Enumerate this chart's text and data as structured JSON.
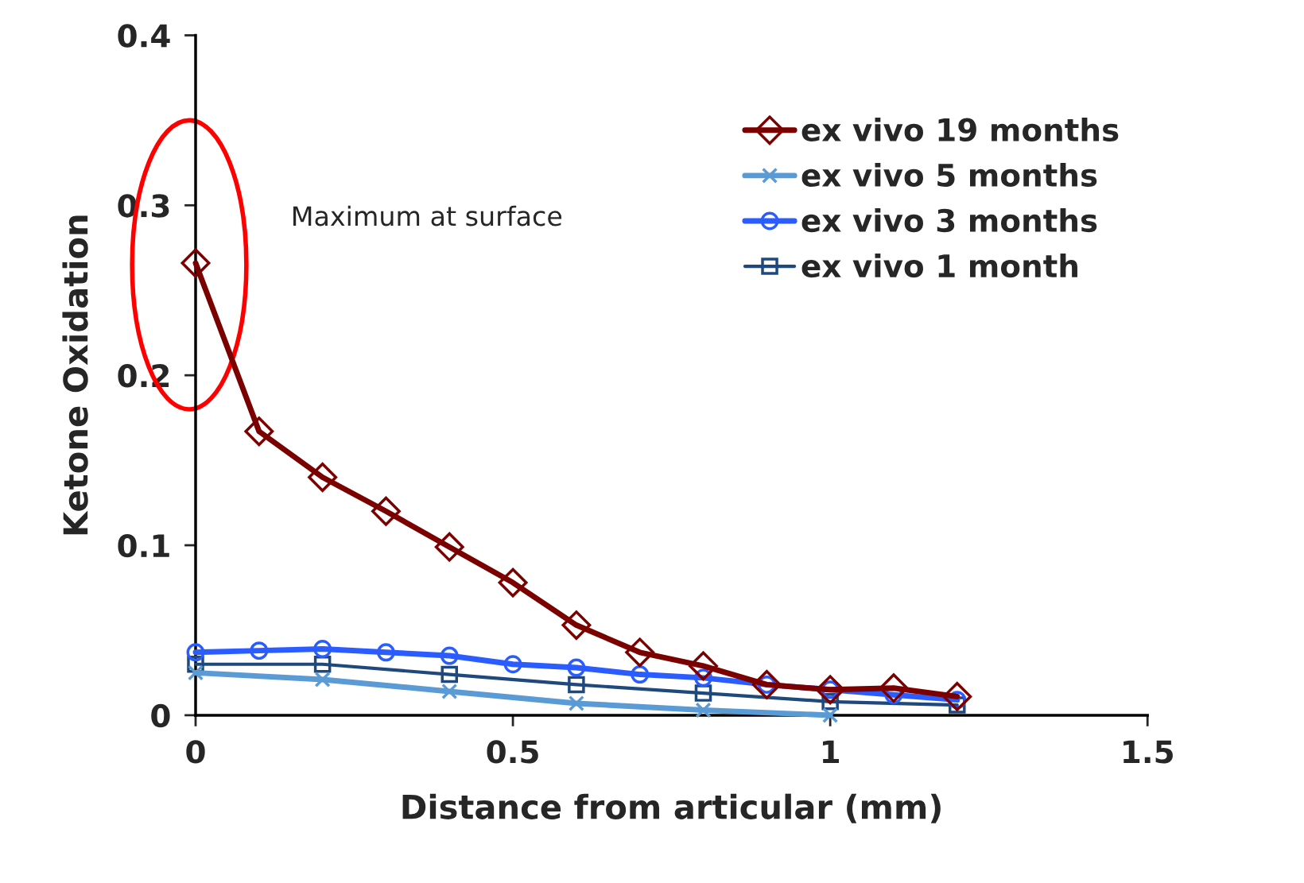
{
  "chart_data": {
    "type": "line",
    "xlabel": "Distance from articular (mm)",
    "ylabel": "Ketone Oxidation",
    "xlim": [
      0,
      1.5
    ],
    "xticks": [
      0,
      0.5,
      1,
      1.5
    ],
    "ylim": [
      0,
      0.4
    ],
    "yticks": [
      0,
      0.1,
      0.2,
      0.3,
      0.4
    ],
    "grid": false,
    "legend": "top right",
    "annotations": [
      "Maximum at surface"
    ],
    "series": [
      {
        "name": "ex vivo 19 months",
        "color": "#7b0000",
        "marker": "diamond",
        "x": [
          0,
          0.1,
          0.2,
          0.3,
          0.4,
          0.5,
          0.6,
          0.7,
          0.8,
          0.9,
          1.0,
          1.1,
          1.2
        ],
        "values": [
          0.266,
          0.167,
          0.14,
          0.12,
          0.099,
          0.078,
          0.053,
          0.037,
          0.029,
          0.018,
          0.015,
          0.016,
          0.011
        ]
      },
      {
        "name": "ex vivo 5 months",
        "color": "#5b9bd5",
        "marker": "cross",
        "x": [
          0,
          0.2,
          0.4,
          0.6,
          0.8,
          1.0
        ],
        "values": [
          0.025,
          0.021,
          0.014,
          0.007,
          0.003,
          0.0
        ]
      },
      {
        "name": "ex vivo 3 months",
        "color": "#2a5cff",
        "marker": "circle",
        "x": [
          0,
          0.1,
          0.2,
          0.3,
          0.4,
          0.5,
          0.6,
          0.7,
          0.8,
          0.9,
          1.0,
          1.1,
          1.2
        ],
        "values": [
          0.037,
          0.038,
          0.039,
          0.037,
          0.035,
          0.03,
          0.028,
          0.024,
          0.022,
          0.018,
          0.015,
          0.012,
          0.009
        ]
      },
      {
        "name": "ex vivo 1 month",
        "color": "#1f497d",
        "marker": "square",
        "x": [
          0,
          0.2,
          0.4,
          0.6,
          0.8,
          1.0,
          1.2
        ],
        "values": [
          0.03,
          0.03,
          0.024,
          0.018,
          0.013,
          0.008,
          0.006
        ]
      }
    ]
  }
}
